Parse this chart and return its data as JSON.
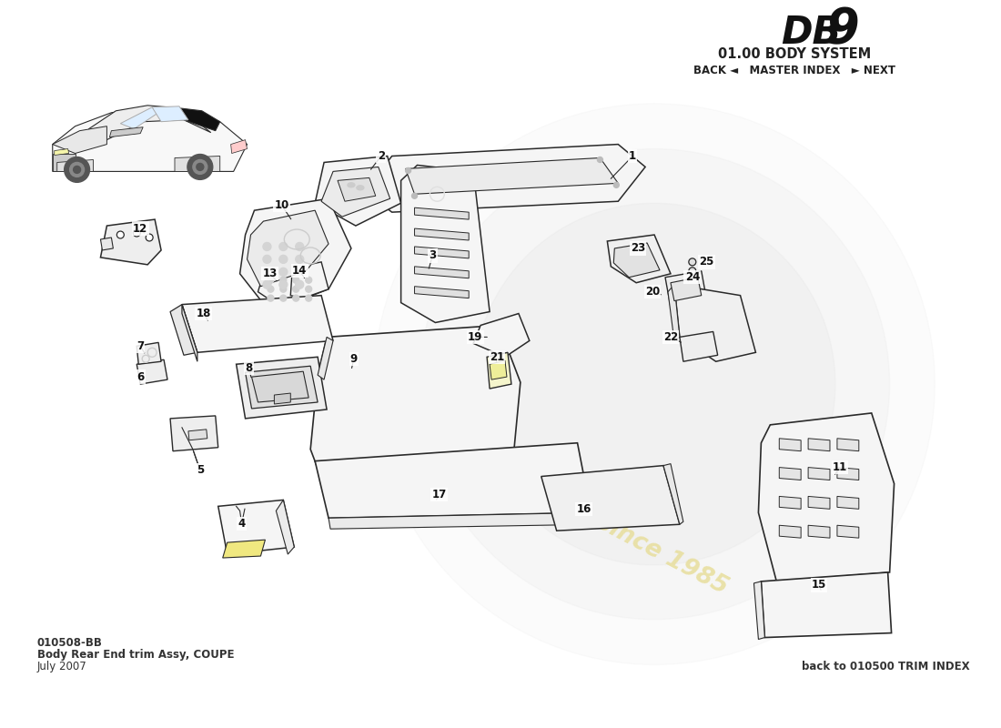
{
  "title": "DB 9",
  "subtitle": "01.00 BODY SYSTEM",
  "nav": "BACK ◄   MASTER INDEX   ► NEXT",
  "doc_number": "010508-BB",
  "doc_title": "Body Rear End trim Assy, COUPE",
  "doc_date": "July 2007",
  "back_link": "back to 010500 TRIM INDEX",
  "bg_color": "#ffffff",
  "line_color": "#2a2a2a",
  "wm_logo_color": "#d8d8d8",
  "wm_text_color": "#e8dfa0",
  "label_font": 8.5
}
